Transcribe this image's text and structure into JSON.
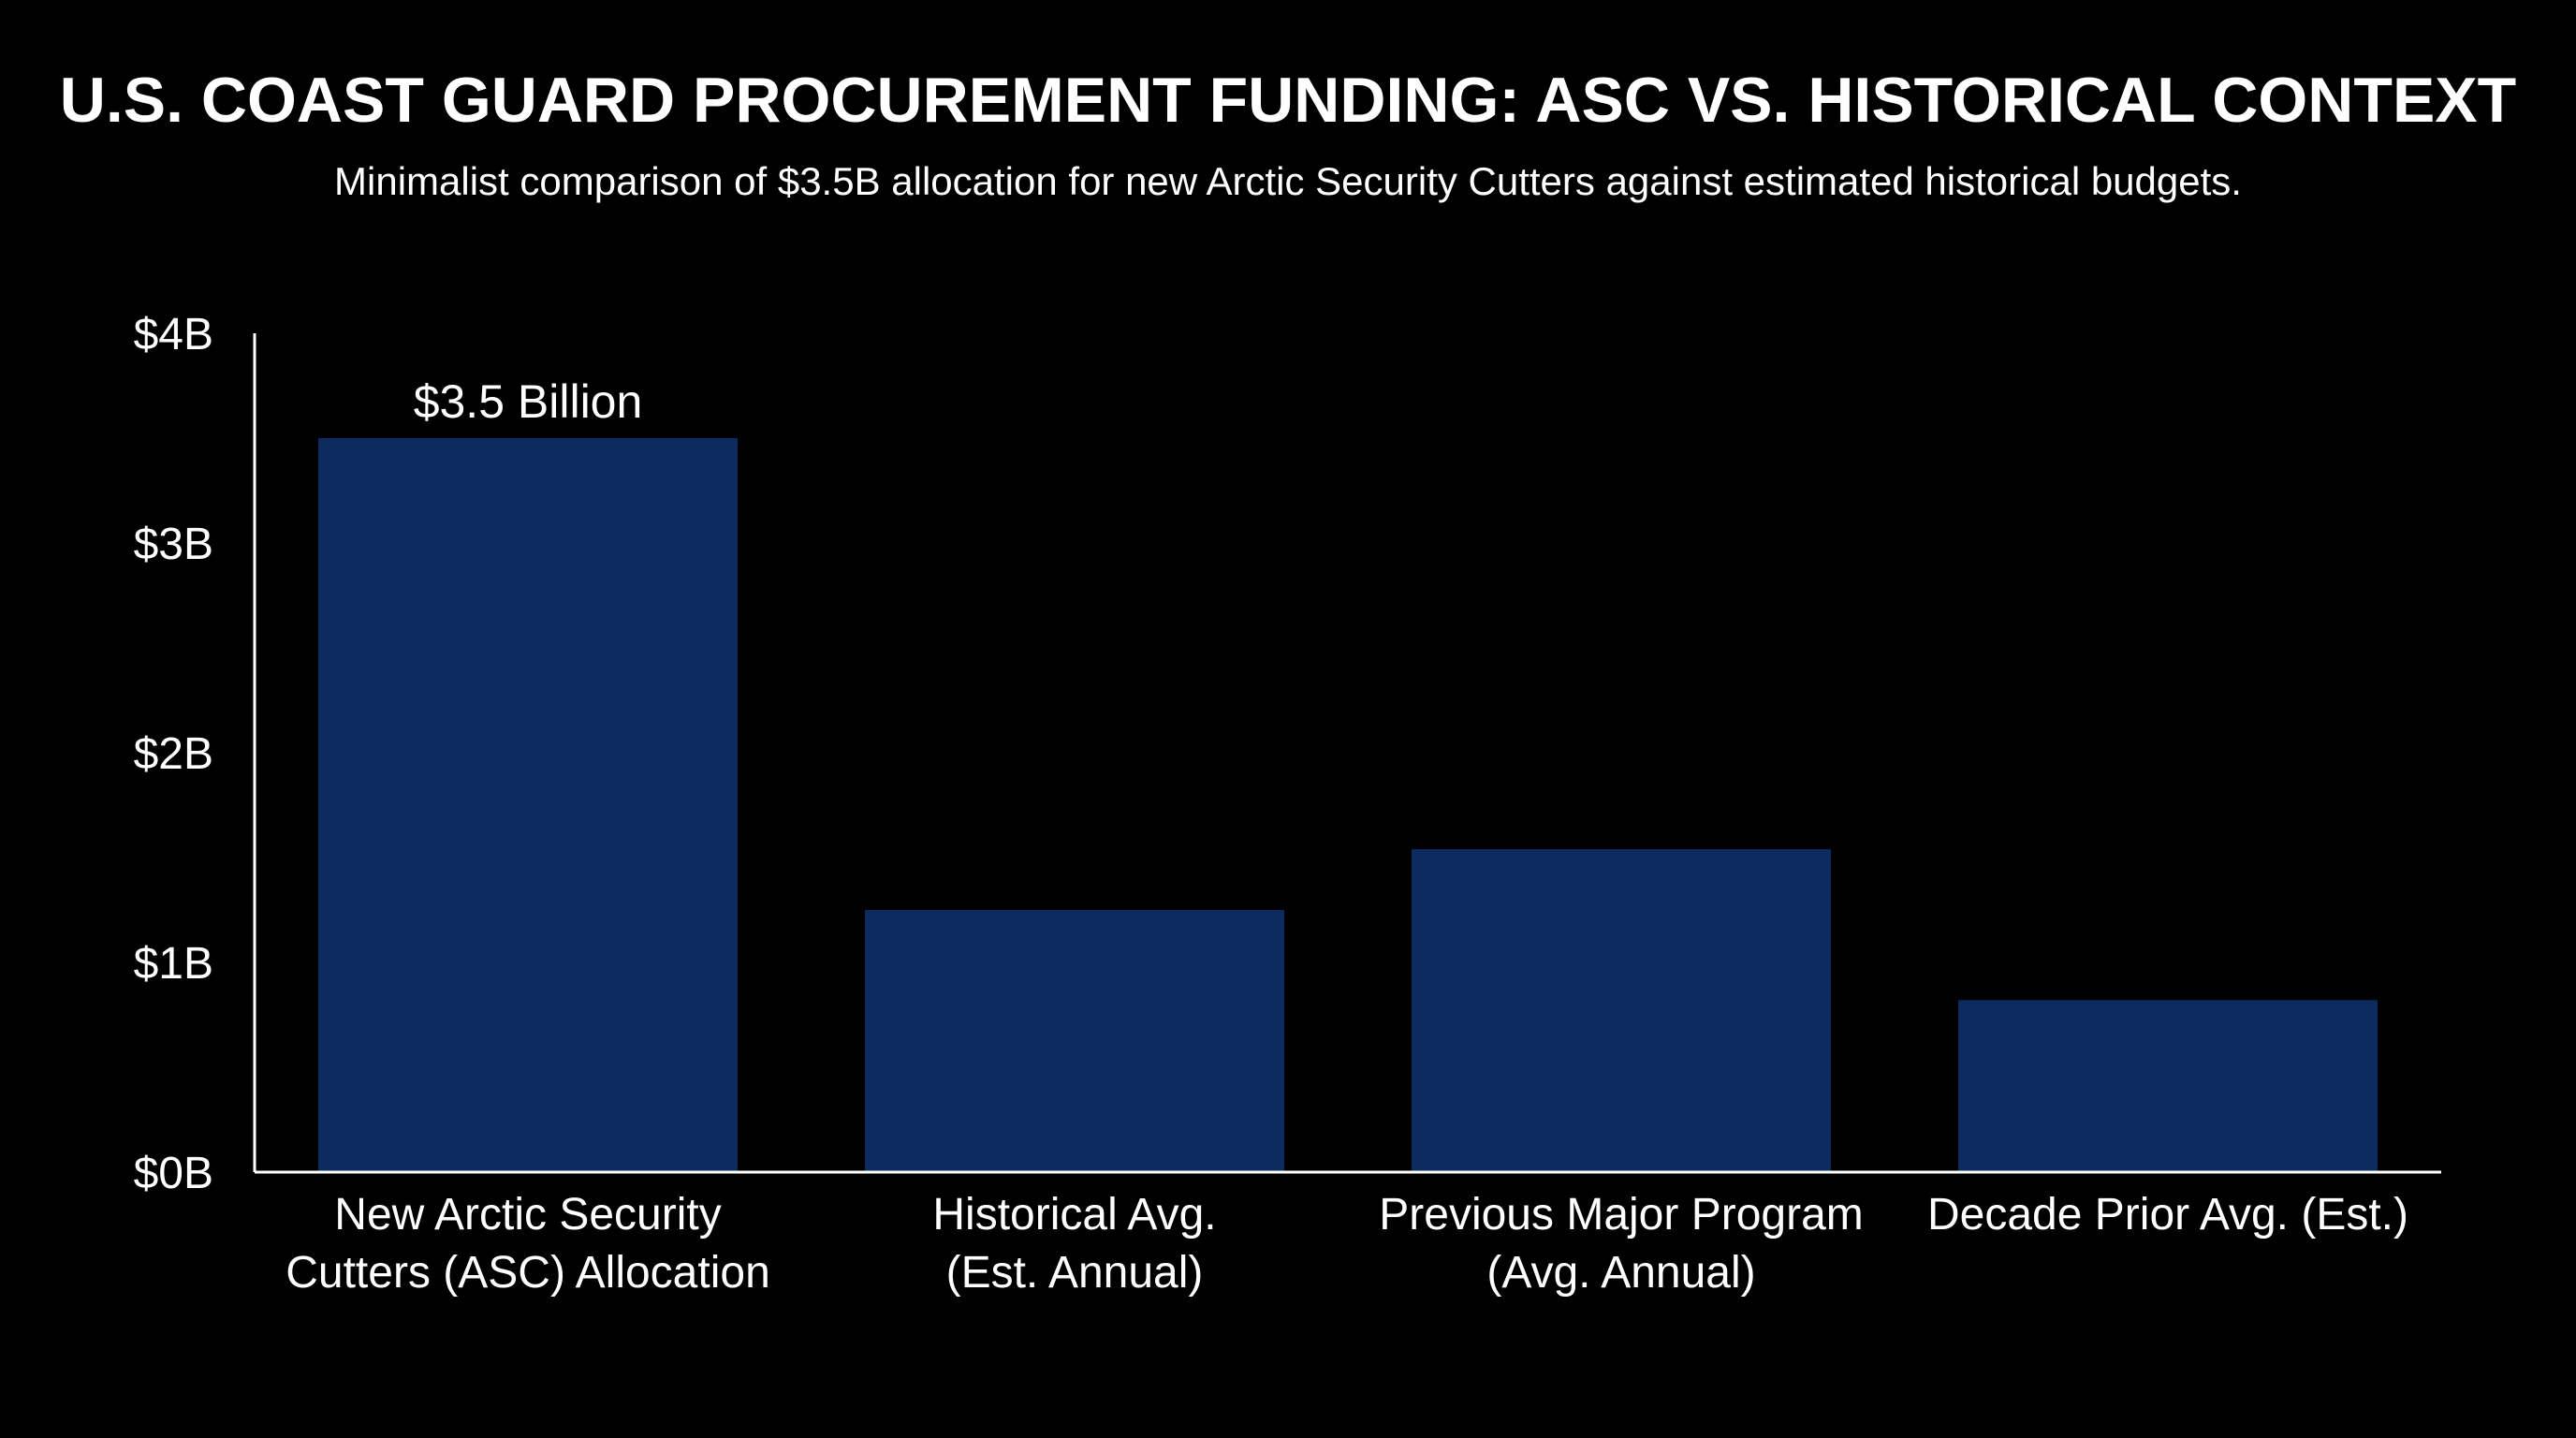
{
  "colors": {
    "background": "#000000",
    "text": "#ffffff",
    "bar": "#0c2a5e",
    "axis": "#ffffff"
  },
  "chart_data": {
    "type": "bar",
    "title": "U.S. COAST GUARD PROCUREMENT FUNDING: ASC VS. HISTORICAL CONTEXT",
    "subtitle": "Minimalist comparison of $3.5B allocation for new Arctic Security Cutters against estimated historical budgets.",
    "xlabel": "",
    "ylabel": "",
    "categories": [
      [
        "New Arctic Security",
        "Cutters (ASC) Allocation"
      ],
      [
        "Historical Avg.",
        "(Est. Annual)"
      ],
      [
        "Previous Major Program",
        "(Avg. Annual)"
      ],
      [
        "Decade Prior Avg. (Est.)"
      ]
    ],
    "values": [
      3.5,
      1.25,
      1.54,
      0.82
    ],
    "value_unit": "billions USD",
    "data_labels": [
      "$3.5 Billion",
      "",
      "",
      ""
    ],
    "ylim": [
      0,
      4
    ],
    "yticks": [
      0,
      1,
      2,
      3,
      4
    ],
    "ytick_labels": [
      "$0B",
      "$1B",
      "$2B",
      "$3B",
      "$4B"
    ],
    "grid": false,
    "legend": "none"
  }
}
